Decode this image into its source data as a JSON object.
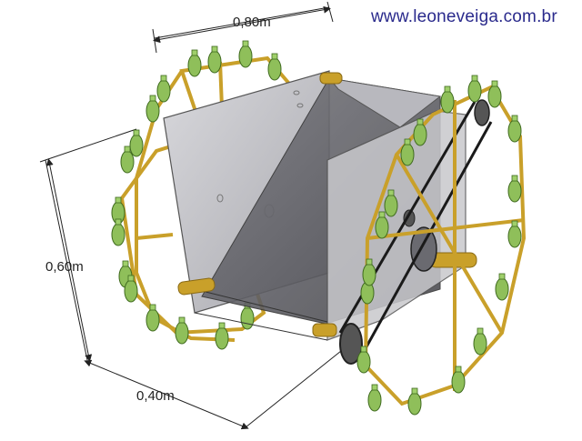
{
  "website": "www.leoneveiga.com.br",
  "dimensions": {
    "width": "0,80m",
    "height": "0,60m",
    "depth": "0,40m"
  },
  "colors": {
    "frame": "#c9a02a",
    "frame_dark": "#8a6a14",
    "panel": "#c8c8cc",
    "panel_dark": "#5e5e62",
    "bottle": "#8fbf5a",
    "bottle_dark": "#4f7a2a",
    "belt": "#1a1a1a",
    "url": "#2a2a8c"
  },
  "icons": [
    "bottle-icon",
    "pulley-icon",
    "axle-icon"
  ]
}
